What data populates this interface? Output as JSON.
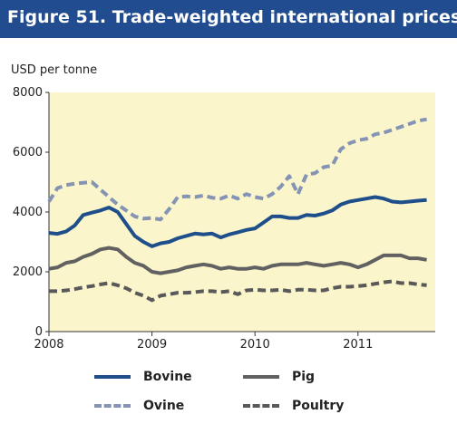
{
  "header": {
    "title": "Figure 51.  Trade-weighted international prices"
  },
  "chart_data": {
    "type": "line",
    "title": "",
    "xlabel": "",
    "ylabel": "USD per tonne",
    "xlim": [
      2008,
      2011.75
    ],
    "ylim": [
      0,
      8000
    ],
    "x_ticks": [
      2008,
      2009,
      2010,
      2011
    ],
    "x_tick_labels": [
      "2008",
      "2009",
      "2010",
      "2011"
    ],
    "y_ticks": [
      0,
      2000,
      4000,
      6000,
      8000
    ],
    "y_tick_labels": [
      "0",
      "2000",
      "4000",
      "6000",
      "8000"
    ],
    "background_color": "#fbf5cc",
    "grid": false,
    "legend_position": "bottom",
    "x": [
      2008.0,
      2008.083,
      2008.167,
      2008.25,
      2008.333,
      2008.417,
      2008.5,
      2008.583,
      2008.667,
      2008.75,
      2008.833,
      2008.917,
      2009.0,
      2009.083,
      2009.167,
      2009.25,
      2009.333,
      2009.417,
      2009.5,
      2009.583,
      2009.667,
      2009.75,
      2009.833,
      2009.917,
      2010.0,
      2010.083,
      2010.167,
      2010.25,
      2010.333,
      2010.417,
      2010.5,
      2010.583,
      2010.667,
      2010.75,
      2010.833,
      2010.917,
      2011.0,
      2011.083,
      2011.167,
      2011.25,
      2011.333,
      2011.417,
      2011.5,
      2011.583,
      2011.667
    ],
    "series": [
      {
        "name": "Bovine",
        "color": "#1f4f8a",
        "dash": "solid",
        "values": [
          3300,
          3270,
          3350,
          3550,
          3900,
          3980,
          4050,
          4150,
          4000,
          3600,
          3200,
          3000,
          2850,
          2950,
          3000,
          3120,
          3200,
          3280,
          3250,
          3280,
          3150,
          3250,
          3320,
          3400,
          3450,
          3650,
          3850,
          3850,
          3800,
          3800,
          3900,
          3880,
          3950,
          4050,
          4250,
          4350,
          4400,
          4450,
          4500,
          4450,
          4350,
          4320,
          4350,
          4380,
          4400
        ]
      },
      {
        "name": "Ovine",
        "color": "#8594b4",
        "dash": "dashed",
        "values": [
          4350,
          4800,
          4900,
          4950,
          4980,
          5000,
          4750,
          4500,
          4250,
          4050,
          3850,
          3780,
          3800,
          3750,
          4100,
          4500,
          4520,
          4500,
          4550,
          4480,
          4450,
          4550,
          4450,
          4600,
          4500,
          4450,
          4600,
          4850,
          5200,
          4600,
          5250,
          5300,
          5500,
          5550,
          6100,
          6300,
          6400,
          6450,
          6600,
          6650,
          6750,
          6850,
          6950,
          7050,
          7100
        ]
      },
      {
        "name": "Pig",
        "color": "#616161",
        "dash": "solid",
        "values": [
          2100,
          2150,
          2300,
          2350,
          2500,
          2600,
          2750,
          2800,
          2750,
          2500,
          2300,
          2200,
          2000,
          1950,
          2000,
          2050,
          2150,
          2200,
          2250,
          2200,
          2100,
          2150,
          2100,
          2100,
          2150,
          2100,
          2200,
          2250,
          2250,
          2250,
          2300,
          2250,
          2200,
          2250,
          2300,
          2250,
          2150,
          2250,
          2400,
          2550,
          2550,
          2550,
          2450,
          2450,
          2400
        ]
      },
      {
        "name": "Poultry",
        "color": "#595959",
        "dash": "dashed",
        "values": [
          1350,
          1350,
          1380,
          1420,
          1480,
          1520,
          1580,
          1620,
          1550,
          1450,
          1300,
          1200,
          1050,
          1200,
          1250,
          1300,
          1300,
          1320,
          1350,
          1350,
          1320,
          1350,
          1250,
          1380,
          1400,
          1380,
          1380,
          1400,
          1350,
          1400,
          1400,
          1380,
          1380,
          1450,
          1500,
          1500,
          1520,
          1550,
          1600,
          1650,
          1680,
          1620,
          1620,
          1580,
          1550
        ]
      }
    ]
  }
}
